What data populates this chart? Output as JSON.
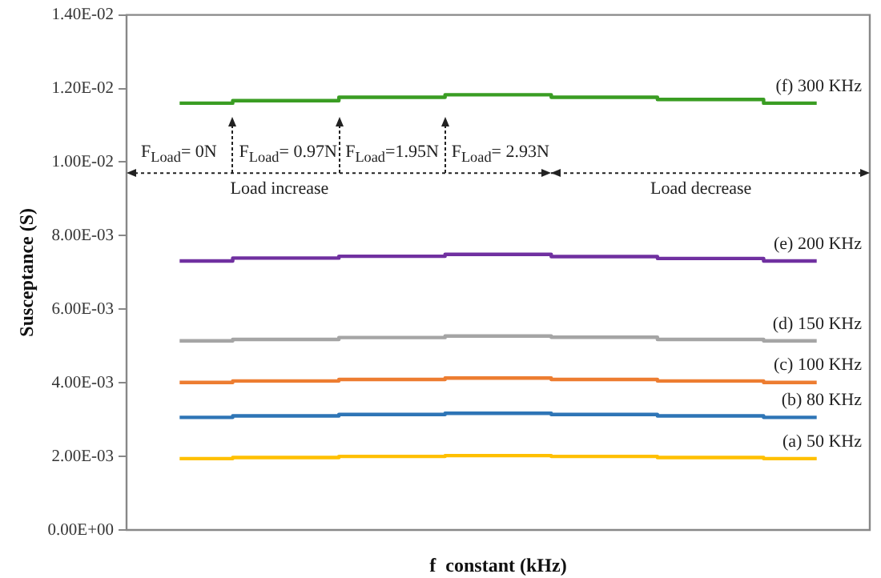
{
  "chart_data": {
    "type": "step",
    "xlabel": "f  constant (kHz)",
    "ylabel": "Susceptance (S)",
    "categories": [
      null,
      null,
      null,
      null,
      null,
      null,
      null
    ],
    "ylim": [
      0,
      0.014
    ],
    "yticks": [
      {
        "value": 0,
        "label": "0.00E+00"
      },
      {
        "value": 0.002,
        "label": "2.00E-03"
      },
      {
        "value": 0.004,
        "label": "4.00E-03"
      },
      {
        "value": 0.006,
        "label": "6.00E-03"
      },
      {
        "value": 0.008,
        "label": "8.00E-03"
      },
      {
        "value": 0.01,
        "label": "1.00E-02"
      },
      {
        "value": 0.012,
        "label": "1.20E-02"
      },
      {
        "value": 0.014,
        "label": "1.40E-02"
      }
    ],
    "grid": false,
    "legend": false,
    "marker": "none",
    "series": [
      {
        "name": "(f) 300 KHz",
        "color": "#3a9d23",
        "values": [
          0.0116,
          0.01167,
          0.01176,
          0.01183,
          0.01176,
          0.0117,
          0.0116
        ]
      },
      {
        "name": "(e) 200 KHz",
        "color": "#7030a0",
        "values": [
          0.00731,
          0.00739,
          0.00744,
          0.00749,
          0.00743,
          0.00738,
          0.00731
        ]
      },
      {
        "name": "(d) 150 KHz",
        "color": "#a5a5a5",
        "values": [
          0.00514,
          0.00518,
          0.00523,
          0.00527,
          0.00524,
          0.00518,
          0.00514
        ]
      },
      {
        "name": "(c) 100 KHz",
        "color": "#ed7d31",
        "values": [
          0.00401,
          0.00405,
          0.00409,
          0.00413,
          0.00409,
          0.00405,
          0.00401
        ]
      },
      {
        "name": "(b) 80 KHz",
        "color": "#2e75b6",
        "values": [
          0.00306,
          0.0031,
          0.00314,
          0.00317,
          0.00314,
          0.0031,
          0.00306
        ]
      },
      {
        "name": "(a) 50 KHz",
        "color": "#ffc000",
        "values": [
          0.00194,
          0.00197,
          0.002,
          0.00202,
          0.002,
          0.00197,
          0.00194
        ]
      }
    ],
    "ref_lines": [
      {
        "axis": "y",
        "value": 0.0097,
        "color": "#222222",
        "line_style": "dotted"
      }
    ],
    "annotations": [
      "F$_{Load}$= 0N",
      "F$_{Load}$= 0.97N",
      "F$_{Load}$=1.95N",
      "F$_{Load}$= 2.93N",
      "Load increase",
      "Load decrease"
    ]
  }
}
